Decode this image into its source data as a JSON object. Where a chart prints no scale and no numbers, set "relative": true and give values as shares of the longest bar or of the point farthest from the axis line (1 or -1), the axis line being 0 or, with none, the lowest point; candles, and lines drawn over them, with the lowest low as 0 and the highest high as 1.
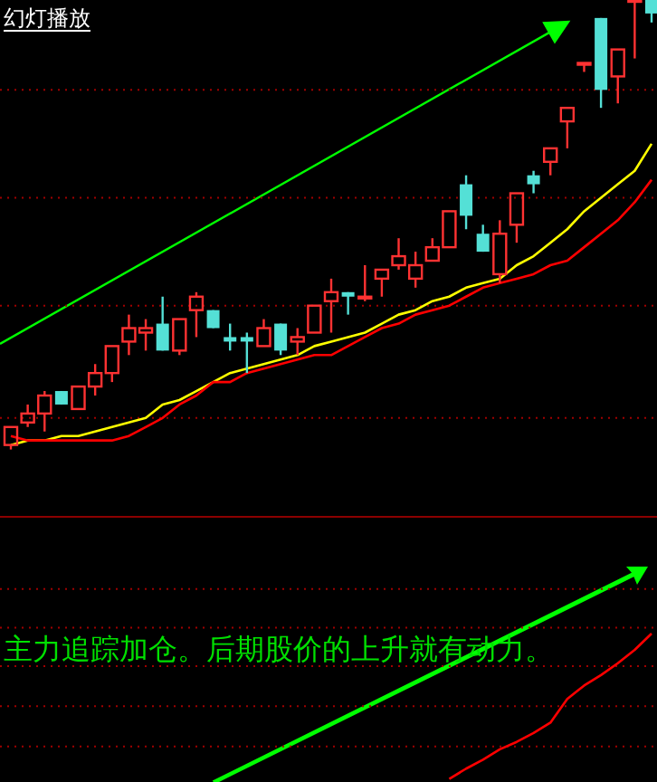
{
  "chart_data": [
    {
      "type": "candlestick",
      "relative": true,
      "ref_lines": [
        {
          "axis": "y",
          "value": 0.8,
          "color": "#a00000",
          "line_style": "dotted"
        },
        {
          "axis": "y",
          "value": 0.56,
          "color": "#a00000",
          "line_style": "dotted"
        },
        {
          "axis": "y",
          "value": 0.32,
          "color": "#a00000",
          "line_style": "dotted"
        },
        {
          "axis": "y",
          "value": 0.07,
          "color": "#a00000",
          "line_style": "dotted"
        }
      ],
      "annotations": [
        "幻灯播放"
      ],
      "categories": [
        null,
        null,
        null,
        null,
        null,
        null,
        null,
        null,
        null,
        null,
        null,
        null,
        null,
        null,
        null,
        null,
        null,
        null,
        null,
        null,
        null,
        null,
        null,
        null,
        null,
        null,
        null,
        null,
        null,
        null,
        null,
        null,
        null,
        null,
        null,
        null,
        null,
        null,
        null
      ],
      "ohlc": [
        [
          0.01,
          0.05,
          0,
          0.05
        ],
        [
          0.06,
          0.1,
          0.05,
          0.08
        ],
        [
          0.08,
          0.13,
          0.04,
          0.12
        ],
        [
          0.13,
          0.13,
          0.1,
          0.1
        ],
        [
          0.09,
          0.14,
          0.09,
          0.14
        ],
        [
          0.14,
          0.19,
          0.12,
          0.17
        ],
        [
          0.17,
          0.23,
          0.15,
          0.23
        ],
        [
          0.24,
          0.3,
          0.21,
          0.27
        ],
        [
          0.26,
          0.29,
          0.22,
          0.27
        ],
        [
          0.28,
          0.34,
          0.22,
          0.22
        ],
        [
          0.22,
          0.29,
          0.21,
          0.29
        ],
        [
          0.31,
          0.35,
          0.25,
          0.34
        ],
        [
          0.31,
          0.31,
          0.27,
          0.27
        ],
        [
          0.25,
          0.28,
          0.22,
          0.24
        ],
        [
          0.25,
          0.26,
          0.17,
          0.24
        ],
        [
          0.23,
          0.29,
          0.23,
          0.27
        ],
        [
          0.28,
          0.28,
          0.21,
          0.22
        ],
        [
          0.24,
          0.27,
          0.21,
          0.25
        ],
        [
          0.26,
          0.32,
          0.26,
          0.32
        ],
        [
          0.33,
          0.38,
          0.26,
          0.35
        ],
        [
          0.35,
          0.35,
          0.3,
          0.34
        ],
        [
          0.34,
          0.41,
          0.33,
          0.34
        ],
        [
          0.38,
          0.4,
          0.34,
          0.4
        ],
        [
          0.41,
          0.47,
          0.4,
          0.43
        ],
        [
          0.38,
          0.44,
          0.36,
          0.41
        ],
        [
          0.42,
          0.47,
          0.42,
          0.45
        ],
        [
          0.45,
          0.53,
          0.45,
          0.53
        ],
        [
          0.59,
          0.61,
          0.49,
          0.52
        ],
        [
          0.48,
          0.5,
          0.44,
          0.44
        ],
        [
          0.39,
          0.51,
          0.37,
          0.48
        ],
        [
          0.5,
          0.57,
          0.46,
          0.57
        ],
        [
          0.61,
          0.62,
          0.57,
          0.59
        ],
        [
          0.64,
          0.67,
          0.61,
          0.67
        ],
        [
          0.73,
          0.76,
          0.67,
          0.76
        ],
        [
          0.86,
          0.86,
          0.84,
          0.86
        ],
        [
          0.96,
          0.96,
          0.76,
          0.8
        ],
        [
          0.83,
          0.89,
          0.77,
          0.89
        ],
        [
          1.0,
          1.0,
          0.87,
          1.0
        ],
        [
          1.0,
          1.0,
          0.95,
          0.97
        ]
      ],
      "colors": [
        "#ff3232",
        "#ff3232",
        "#ff3232",
        "#54e0d6",
        "#ff3232",
        "#ff3232",
        "#ff3232",
        "#ff3232",
        "#ff3232",
        "#54e0d6",
        "#ff3232",
        "#ff3232",
        "#54e0d6",
        "#54e0d6",
        "#54e0d6",
        "#ff3232",
        "#54e0d6",
        "#ff3232",
        "#ff3232",
        "#ff3232",
        "#54e0d6",
        "#ff3232",
        "#ff3232",
        "#ff3232",
        "#ff3232",
        "#ff3232",
        "#ff3232",
        "#54e0d6",
        "#54e0d6",
        "#ff3232",
        "#ff3232",
        "#54e0d6",
        "#ff3232",
        "#ff3232",
        "#ff3232",
        "#54e0d6",
        "#ff3232",
        "#ff3232",
        "#54e0d6"
      ],
      "series": [
        {
          "type": "line",
          "color": "#ffff00",
          "values": [
            0.01,
            0.02,
            0.02,
            0.03,
            0.03,
            0.04,
            0.05,
            0.06,
            0.07,
            0.1,
            0.11,
            0.13,
            0.15,
            0.17,
            0.18,
            0.19,
            0.2,
            0.21,
            0.23,
            0.24,
            0.25,
            0.26,
            0.28,
            0.3,
            0.31,
            0.33,
            0.34,
            0.36,
            0.37,
            0.38,
            0.41,
            0.43,
            0.46,
            0.49,
            0.53,
            0.56,
            0.59,
            0.62,
            0.68
          ]
        },
        {
          "type": "line",
          "color": "#ff0000",
          "values": [
            0.03,
            0.02,
            0.02,
            0.02,
            0.02,
            0.02,
            0.02,
            0.03,
            0.05,
            0.07,
            0.1,
            0.12,
            0.15,
            0.15,
            0.17,
            0.18,
            0.19,
            0.2,
            0.21,
            0.21,
            0.23,
            0.25,
            0.27,
            0.28,
            0.3,
            0.31,
            0.32,
            0.34,
            0.36,
            0.37,
            0.38,
            0.39,
            0.41,
            0.42,
            0.45,
            0.48,
            0.51,
            0.55,
            0.6
          ]
        }
      ]
    },
    {
      "type": "line",
      "relative": true,
      "ref_lines": [
        {
          "axis": "y",
          "value": 1.3,
          "color": "#a00000",
          "line_style": "dotted"
        },
        {
          "axis": "y",
          "value": 1.04,
          "color": "#a00000",
          "line_style": "dotted"
        },
        {
          "axis": "y",
          "value": 0.78,
          "color": "#a00000",
          "line_style": "dotted"
        },
        {
          "axis": "y",
          "value": 0.51,
          "color": "#a00000",
          "line_style": "dotted"
        },
        {
          "axis": "y",
          "value": 0.24,
          "color": "#a00000",
          "line_style": "dotted"
        }
      ],
      "annotations": [
        "主力追踪加仓。后期股价的上升就有动力。"
      ],
      "categories": [
        null,
        null,
        null,
        null,
        null,
        null,
        null,
        null,
        null,
        null,
        null,
        null,
        null,
        null,
        null,
        null,
        null,
        null,
        null,
        null,
        null,
        null,
        null,
        null,
        null,
        null,
        null,
        null,
        null,
        null,
        null,
        null,
        null,
        null,
        null,
        null,
        null,
        null,
        null
      ],
      "series": [
        {
          "color": "#ff0000",
          "values": [
            null,
            null,
            null,
            null,
            null,
            null,
            null,
            null,
            null,
            null,
            null,
            null,
            null,
            null,
            null,
            null,
            null,
            null,
            null,
            null,
            null,
            null,
            null,
            null,
            null,
            null,
            0.02,
            0.09,
            0.15,
            0.22,
            0.27,
            0.33,
            0.4,
            0.56,
            0.65,
            0.72,
            0.8,
            0.89,
            1
          ]
        }
      ]
    }
  ]
}
